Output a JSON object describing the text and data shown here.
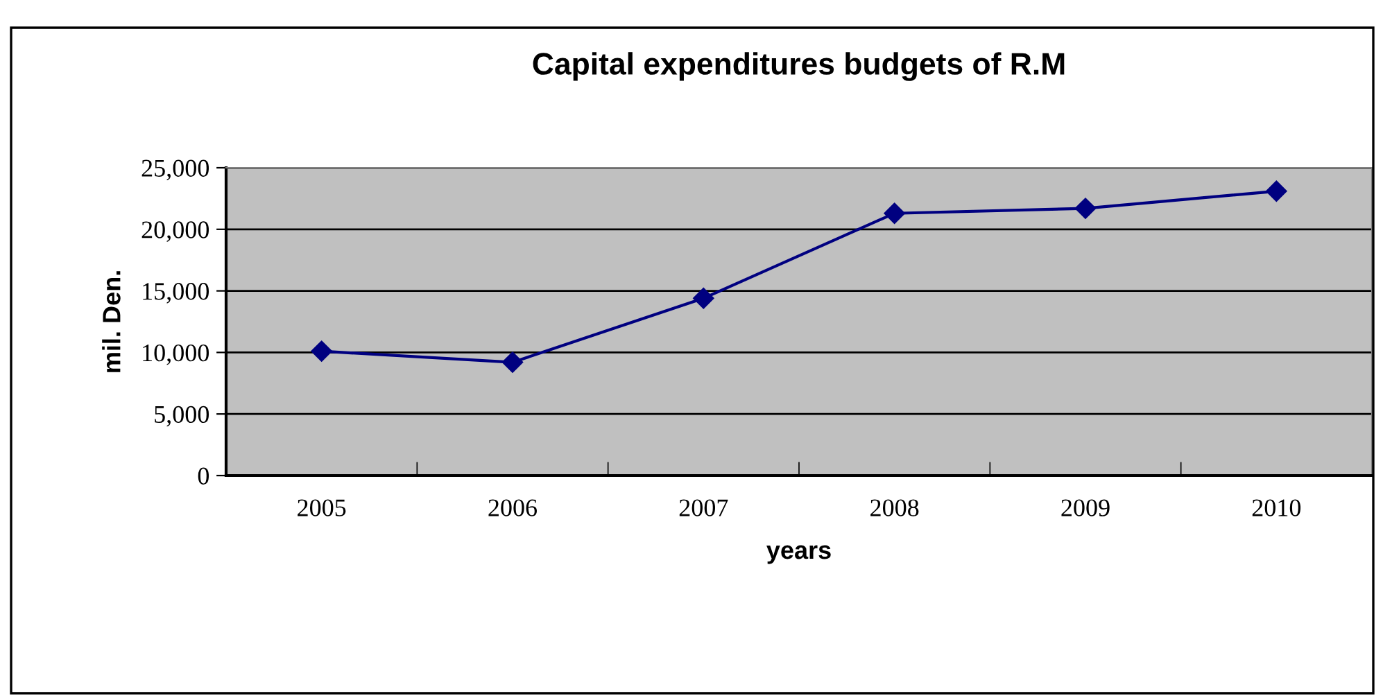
{
  "chart_data": {
    "type": "line",
    "title": "Capital expenditures budgets of R.M",
    "xlabel": "years",
    "ylabel": "mil. Den.",
    "categories": [
      "2005",
      "2006",
      "2007",
      "2008",
      "2009",
      "2010"
    ],
    "series": [
      {
        "color": "#000080",
        "values": [
          10100,
          9200,
          14400,
          21300,
          21700,
          23100
        ]
      }
    ],
    "ylim": [
      0,
      25000
    ],
    "yticks": [
      {
        "value": 0,
        "label": "0"
      },
      {
        "value": 5000,
        "label": "5,000"
      },
      {
        "value": 10000,
        "label": "10,000"
      },
      {
        "value": 15000,
        "label": "15,000"
      },
      {
        "value": 20000,
        "label": "20,000"
      },
      {
        "value": 25000,
        "label": "25,000"
      }
    ],
    "grid": "y",
    "legend": false,
    "marker": "diamond",
    "line_style": "solid"
  }
}
